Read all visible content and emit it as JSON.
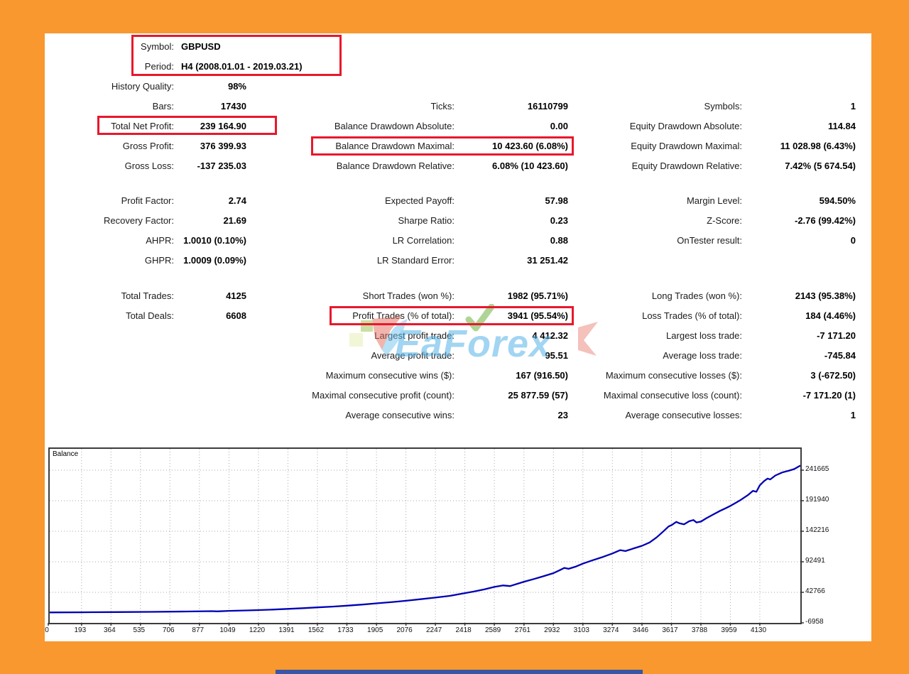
{
  "report": {
    "accent_border_color": "#f8982f",
    "highlight_color": "#e8182c",
    "annotations_highlighted": [
      "symbol-period",
      "total-net-profit",
      "balance-drawdown-maximal",
      "profit-trades"
    ]
  },
  "stats": {
    "block1": [
      {
        "cells": [
          {
            "col": 0,
            "label": "Symbol:",
            "value": "GBPUSD",
            "value_align": "left"
          }
        ]
      },
      {
        "cells": [
          {
            "col": 0,
            "label": "Period:",
            "value": "H4 (2008.01.01 - 2019.03.21)",
            "value_align": "left"
          }
        ]
      },
      {
        "cells": [
          {
            "col": 0,
            "label": "History Quality:",
            "value": "98%"
          }
        ]
      },
      {
        "cells": [
          {
            "col": 0,
            "label": "Bars:",
            "value": "17430"
          },
          {
            "col": 1,
            "label": "Ticks:",
            "value": "16110799"
          },
          {
            "col": 2,
            "label": "Symbols:",
            "value": "1"
          }
        ]
      },
      {
        "cells": [
          {
            "col": 0,
            "label": "Total Net Profit:",
            "value": "239 164.90"
          },
          {
            "col": 1,
            "label": "Balance Drawdown Absolute:",
            "value": "0.00"
          },
          {
            "col": 2,
            "label": "Equity Drawdown Absolute:",
            "value": "114.84"
          }
        ]
      },
      {
        "cells": [
          {
            "col": 0,
            "label": "Gross Profit:",
            "value": "376 399.93"
          },
          {
            "col": 1,
            "label": "Balance Drawdown Maximal:",
            "value": "10 423.60 (6.08%)"
          },
          {
            "col": 2,
            "label": "Equity Drawdown Maximal:",
            "value": "11 028.98 (6.43%)"
          }
        ]
      },
      {
        "cells": [
          {
            "col": 0,
            "label": "Gross Loss:",
            "value": "-137 235.03"
          },
          {
            "col": 1,
            "label": "Balance Drawdown Relative:",
            "value": "6.08% (10 423.60)"
          },
          {
            "col": 2,
            "label": "Equity Drawdown Relative:",
            "value": "7.42% (5 674.54)"
          }
        ]
      }
    ],
    "block2": [
      {
        "cells": [
          {
            "col": 0,
            "label": "Profit Factor:",
            "value": "2.74"
          },
          {
            "col": 1,
            "label": "Expected Payoff:",
            "value": "57.98"
          },
          {
            "col": 2,
            "label": "Margin Level:",
            "value": "594.50%"
          }
        ]
      },
      {
        "cells": [
          {
            "col": 0,
            "label": "Recovery Factor:",
            "value": "21.69"
          },
          {
            "col": 1,
            "label": "Sharpe Ratio:",
            "value": "0.23"
          },
          {
            "col": 2,
            "label": "Z-Score:",
            "value": "-2.76 (99.42%)"
          }
        ]
      },
      {
        "cells": [
          {
            "col": 0,
            "label": "AHPR:",
            "value": "1.0010 (0.10%)"
          },
          {
            "col": 1,
            "label": "LR Correlation:",
            "value": "0.88"
          },
          {
            "col": 2,
            "label": "OnTester result:",
            "value": "0"
          }
        ]
      },
      {
        "cells": [
          {
            "col": 0,
            "label": "GHPR:",
            "value": "1.0009 (0.09%)"
          },
          {
            "col": 1,
            "label": "LR Standard Error:",
            "value": "31 251.42"
          }
        ]
      }
    ],
    "block3": [
      {
        "cells": [
          {
            "col": 0,
            "label": "Total Trades:",
            "value": "4125"
          },
          {
            "col": 1,
            "label": "Short Trades (won %):",
            "value": "1982 (95.71%)"
          },
          {
            "col": 2,
            "label": "Long Trades (won %):",
            "value": "2143 (95.38%)"
          }
        ]
      },
      {
        "cells": [
          {
            "col": 0,
            "label": "Total Deals:",
            "value": "6608"
          },
          {
            "col": 1,
            "label": "Profit Trades (% of total):",
            "value": "3941 (95.54%)"
          },
          {
            "col": 2,
            "label": "Loss Trades (% of total):",
            "value": "184 (4.46%)"
          }
        ]
      },
      {
        "cells": [
          {
            "col": 1,
            "label": "Largest profit trade:",
            "value": "4 412.32"
          },
          {
            "col": 2,
            "label": "Largest loss trade:",
            "value": "-7 171.20"
          }
        ]
      },
      {
        "cells": [
          {
            "col": 1,
            "label": "Average profit trade:",
            "value": "95.51"
          },
          {
            "col": 2,
            "label": "Average loss trade:",
            "value": "-745.84"
          }
        ]
      },
      {
        "cells": [
          {
            "col": 1,
            "label": "Maximum consecutive wins ($):",
            "value": "167 (916.50)"
          },
          {
            "col": 2,
            "label": "Maximum consecutive losses ($):",
            "value": "3 (-672.50)"
          }
        ]
      },
      {
        "cells": [
          {
            "col": 1,
            "label": "Maximal consecutive profit (count):",
            "value": "25 877.59 (57)"
          },
          {
            "col": 2,
            "label": "Maximal consecutive loss (count):",
            "value": "-7 171.20 (1)"
          }
        ]
      },
      {
        "cells": [
          {
            "col": 1,
            "label": "Average consecutive wins:",
            "value": "23"
          },
          {
            "col": 2,
            "label": "Average consecutive losses:",
            "value": "1"
          }
        ]
      }
    ]
  },
  "watermark": {
    "prefix": "EaF",
    "mid": "o",
    "suffix": "rex",
    "text_color": "#55b4e8",
    "check_color": "#6cb33f",
    "swoosh_red": "#e36a5a",
    "swoosh_blue": "#6fc4ee"
  },
  "chart_data": {
    "type": "line",
    "title": "Balance",
    "series_name": "Balance",
    "line_color": "#0000b4",
    "grid": "dotted",
    "legend_position": "top-left-inside",
    "x_ticks": [
      0,
      193,
      364,
      535,
      706,
      877,
      1049,
      1220,
      1391,
      1562,
      1733,
      1905,
      2076,
      2247,
      2418,
      2589,
      2761,
      2932,
      3103,
      3274,
      3446,
      3617,
      3788,
      3959,
      4130
    ],
    "y_ticks": [
      241665,
      191940,
      142216,
      92491,
      42766,
      -6958
    ],
    "x_range": [
      0,
      4366
    ],
    "y_range": [
      -6958,
      276357
    ],
    "points": [
      [
        0,
        10000
      ],
      [
        200,
        10300
      ],
      [
        400,
        10600
      ],
      [
        600,
        11000
      ],
      [
        800,
        11600
      ],
      [
        950,
        12100
      ],
      [
        980,
        11800
      ],
      [
        1049,
        12600
      ],
      [
        1150,
        13300
      ],
      [
        1220,
        13900
      ],
      [
        1300,
        14700
      ],
      [
        1391,
        15800
      ],
      [
        1480,
        17000
      ],
      [
        1562,
        18200
      ],
      [
        1650,
        19500
      ],
      [
        1733,
        21000
      ],
      [
        1820,
        22800
      ],
      [
        1905,
        24800
      ],
      [
        2000,
        27000
      ],
      [
        2076,
        29000
      ],
      [
        2160,
        31500
      ],
      [
        2247,
        34200
      ],
      [
        2330,
        37000
      ],
      [
        2418,
        41500
      ],
      [
        2470,
        44000
      ],
      [
        2530,
        47500
      ],
      [
        2589,
        51500
      ],
      [
        2640,
        54000
      ],
      [
        2680,
        53000
      ],
      [
        2761,
        60000
      ],
      [
        2820,
        64500
      ],
      [
        2880,
        69500
      ],
      [
        2932,
        74000
      ],
      [
        2970,
        79000
      ],
      [
        2995,
        82500
      ],
      [
        3020,
        81000
      ],
      [
        3060,
        84500
      ],
      [
        3103,
        89500
      ],
      [
        3160,
        95000
      ],
      [
        3220,
        100500
      ],
      [
        3274,
        106000
      ],
      [
        3320,
        111500
      ],
      [
        3350,
        110000
      ],
      [
        3400,
        114500
      ],
      [
        3446,
        118500
      ],
      [
        3490,
        124000
      ],
      [
        3530,
        132000
      ],
      [
        3570,
        142000
      ],
      [
        3600,
        150000
      ],
      [
        3620,
        152500
      ],
      [
        3645,
        157500
      ],
      [
        3665,
        155000
      ],
      [
        3690,
        153500
      ],
      [
        3720,
        158500
      ],
      [
        3745,
        160500
      ],
      [
        3762,
        156500
      ],
      [
        3788,
        158000
      ],
      [
        3820,
        163500
      ],
      [
        3860,
        169500
      ],
      [
        3900,
        175500
      ],
      [
        3930,
        179500
      ],
      [
        3959,
        183500
      ],
      [
        3990,
        188500
      ],
      [
        4020,
        193500
      ],
      [
        4060,
        201000
      ],
      [
        4090,
        208000
      ],
      [
        4110,
        206500
      ],
      [
        4130,
        217000
      ],
      [
        4155,
        224000
      ],
      [
        4175,
        228000
      ],
      [
        4190,
        226500
      ],
      [
        4220,
        233000
      ],
      [
        4260,
        238000
      ],
      [
        4300,
        241000
      ],
      [
        4330,
        243500
      ],
      [
        4366,
        249165
      ]
    ]
  }
}
